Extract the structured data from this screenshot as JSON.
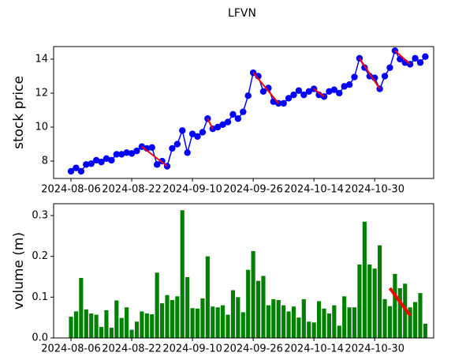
{
  "chart_data": [
    {
      "type": "line",
      "title": "LFVN",
      "ylabel": "stock price",
      "color": "#0000ff",
      "ylabel_color": "#0000ff",
      "categories": [
        "2024-08-06",
        null,
        null,
        null,
        null,
        null,
        null,
        null,
        null,
        null,
        null,
        null,
        "2024-08-22",
        null,
        null,
        null,
        null,
        null,
        null,
        null,
        null,
        null,
        null,
        null,
        "2024-09-10",
        null,
        null,
        null,
        null,
        null,
        null,
        null,
        null,
        null,
        null,
        null,
        "2024-09-26",
        null,
        null,
        null,
        null,
        null,
        null,
        null,
        null,
        null,
        null,
        null,
        "2024-10-14",
        null,
        null,
        null,
        null,
        null,
        null,
        null,
        null,
        null,
        null,
        null,
        "2024-10-30",
        null,
        null,
        null,
        null,
        null,
        null,
        null,
        null,
        null,
        null
      ],
      "values": [
        7.4,
        7.6,
        7.4,
        7.8,
        7.85,
        8.05,
        7.95,
        8.15,
        8.05,
        8.4,
        8.4,
        8.5,
        8.45,
        8.6,
        8.85,
        8.75,
        8.8,
        7.8,
        8.0,
        7.7,
        8.75,
        9.0,
        9.8,
        8.5,
        9.6,
        9.45,
        9.7,
        10.5,
        9.9,
        10.0,
        10.15,
        10.3,
        10.75,
        10.5,
        10.9,
        11.85,
        13.2,
        13.0,
        12.1,
        12.3,
        11.5,
        11.4,
        11.4,
        11.7,
        11.9,
        12.15,
        11.9,
        12.1,
        12.25,
        11.9,
        11.8,
        12.1,
        12.2,
        12.0,
        12.4,
        12.5,
        12.95,
        14.05,
        13.5,
        13.0,
        12.9,
        12.25,
        13.0,
        13.5,
        14.5,
        14.0,
        13.8,
        13.7,
        14.05,
        13.8,
        14.15
      ],
      "trend_color": "#ff0000",
      "trend_lines": [
        {
          "x": [
            14,
            19
          ],
          "values": [
            8.85,
            7.7
          ]
        },
        {
          "x": [
            27,
            28
          ],
          "values": [
            10.5,
            9.9
          ]
        },
        {
          "x": [
            36,
            41
          ],
          "values": [
            13.2,
            11.4
          ]
        },
        {
          "x": [
            48,
            50
          ],
          "values": [
            12.25,
            11.8
          ]
        },
        {
          "x": [
            57,
            61
          ],
          "values": [
            14.05,
            12.25
          ]
        },
        {
          "x": [
            64,
            67
          ],
          "values": [
            14.5,
            13.7
          ]
        }
      ],
      "xlim": [
        -3.43,
        71.65
      ],
      "ylim": [
        6.98,
        14.74
      ],
      "yticks": [
        8,
        10,
        12,
        14
      ]
    },
    {
      "type": "bar",
      "ylabel": "volume (m)",
      "color": "#008000",
      "ylabel_color": "#008000",
      "categories": [
        "2024-08-06",
        null,
        null,
        null,
        null,
        null,
        null,
        null,
        null,
        null,
        null,
        null,
        "2024-08-22",
        null,
        null,
        null,
        null,
        null,
        null,
        null,
        null,
        null,
        null,
        null,
        "2024-09-10",
        null,
        null,
        null,
        null,
        null,
        null,
        null,
        null,
        null,
        null,
        null,
        "2024-09-26",
        null,
        null,
        null,
        null,
        null,
        null,
        null,
        null,
        null,
        null,
        null,
        "2024-10-14",
        null,
        null,
        null,
        null,
        null,
        null,
        null,
        null,
        null,
        null,
        null,
        "2024-10-30",
        null,
        null,
        null,
        null,
        null,
        null,
        null,
        null,
        null,
        null
      ],
      "values": [
        0.052,
        0.065,
        0.147,
        0.07,
        0.06,
        0.057,
        0.027,
        0.068,
        0.025,
        0.092,
        0.049,
        0.075,
        0.02,
        0.04,
        0.065,
        0.06,
        0.058,
        0.16,
        0.085,
        0.105,
        0.093,
        0.102,
        0.313,
        0.149,
        0.073,
        0.072,
        0.097,
        0.2,
        0.077,
        0.075,
        0.08,
        0.057,
        0.117,
        0.1,
        0.063,
        0.167,
        0.213,
        0.14,
        0.152,
        0.08,
        0.095,
        0.093,
        0.08,
        0.065,
        0.077,
        0.05,
        0.095,
        0.04,
        0.038,
        0.09,
        0.072,
        0.06,
        0.08,
        0.03,
        0.102,
        0.075,
        0.075,
        0.18,
        0.285,
        0.18,
        0.17,
        0.227,
        0.095,
        0.078,
        0.157,
        0.122,
        0.133,
        0.075,
        0.088,
        0.11,
        0.035
      ],
      "trend_color": "#ff0000",
      "trend_lines": [
        {
          "x": [
            63,
            67
          ],
          "values": [
            0.122,
            0.055
          ]
        }
      ],
      "xlim": [
        -3.43,
        71.65
      ],
      "ylim": [
        0,
        0.329
      ],
      "yticks": [
        {
          "value": 0,
          "label": "0.0"
        },
        0.1,
        0.2,
        0.3
      ]
    }
  ]
}
